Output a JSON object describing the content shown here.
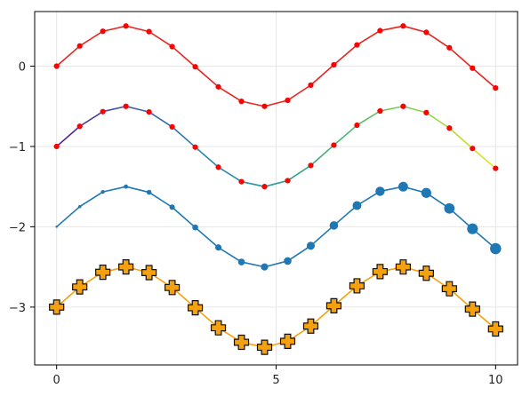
{
  "chart_data": {
    "type": "line",
    "x": [
      0,
      0.5263,
      1.0526,
      1.5789,
      2.1053,
      2.6316,
      3.1579,
      3.6842,
      4.2105,
      4.7368,
      5.2632,
      5.7895,
      6.3158,
      6.8421,
      7.3684,
      7.8947,
      8.4211,
      8.9474,
      9.4737,
      10.0
    ],
    "xlim": [
      -0.5,
      10.5
    ],
    "ylim": [
      -3.72,
      0.68
    ],
    "x_ticks": [
      0,
      5,
      10
    ],
    "x_tick_labels": [
      "0",
      "5",
      "10"
    ],
    "y_ticks": [
      0,
      -1,
      -2,
      -3
    ],
    "y_tick_labels": [
      "0",
      "−1",
      "−2",
      "−3"
    ],
    "grid": true,
    "legend": "none",
    "series": [
      {
        "offset": 0,
        "line_color": "#e8251f",
        "marker": "circle",
        "marker_color": "#ff0000",
        "marker_sizes": [
          5,
          5,
          5,
          5,
          5,
          5,
          5,
          5,
          5,
          5,
          5,
          5,
          5,
          5,
          5,
          5,
          5,
          5,
          5,
          5
        ],
        "values": [
          0,
          0.2511,
          0.4341,
          0.5,
          0.4298,
          0.2439,
          -0.0083,
          -0.2578,
          -0.438,
          -0.4999,
          -0.4256,
          -0.2364,
          0.0166,
          0.2644,
          0.4418,
          0.4997,
          0.4213,
          0.2289,
          -0.025,
          -0.272
        ]
      },
      {
        "offset": -1,
        "line_color": "gradient",
        "gradient_colors": [
          "#5a1b8c",
          "#3b58a8",
          "#2a82b5",
          "#2b9c9a",
          "#4ab86e",
          "#8ed24a",
          "#e6e51d"
        ],
        "marker": "circle",
        "marker_color": "#ff0000",
        "marker_sizes": [
          5,
          5,
          5,
          5,
          5,
          5,
          5,
          5,
          5,
          5,
          5,
          5,
          5,
          5,
          5,
          5,
          5,
          5,
          5,
          5
        ],
        "values": [
          -1.0,
          -0.7489,
          -0.5659,
          -0.5,
          -0.5702,
          -0.7561,
          -1.0083,
          -1.2578,
          -1.438,
          -1.4999,
          -1.4256,
          -1.2364,
          -0.9834,
          -0.7356,
          -0.5582,
          -0.5003,
          -0.5787,
          -0.7711,
          -1.025,
          -1.272
        ]
      },
      {
        "offset": -2,
        "line_color": "#1f77b4",
        "marker": "circle",
        "marker_color": "#1f77b4",
        "marker_sizes": [
          2,
          2.8,
          3.4,
          3.9,
          4.4,
          4.9,
          5.3,
          5.7,
          6.1,
          6.5,
          6.9,
          7.3,
          7.6,
          8.0,
          8.3,
          8.7,
          9.0,
          9.4,
          9.7,
          10.0
        ],
        "values": [
          -2.0,
          -1.7489,
          -1.5659,
          -1.5,
          -1.5702,
          -1.7561,
          -2.0083,
          -2.2578,
          -2.438,
          -2.4999,
          -2.4256,
          -2.2364,
          -1.9834,
          -1.7356,
          -1.5582,
          -1.5003,
          -1.5787,
          -1.7711,
          -2.025,
          -2.272
        ]
      },
      {
        "offset": -3,
        "line_color": "#f5a10d",
        "marker": "cross",
        "marker_color": "#f5a10d",
        "marker_stroke": "#111111",
        "marker_sizes": [
          8,
          8,
          8,
          8,
          8,
          8,
          8,
          8,
          8,
          8,
          8,
          8,
          8,
          8,
          8,
          8,
          8,
          8,
          8,
          8
        ],
        "values": [
          -3.0,
          -2.7489,
          -2.5659,
          -2.5,
          -2.5702,
          -2.7561,
          -3.0083,
          -3.2578,
          -3.438,
          -3.4999,
          -3.4256,
          -3.2364,
          -2.9834,
          -2.7356,
          -2.5582,
          -2.5003,
          -2.5787,
          -2.7711,
          -3.025,
          -3.272
        ]
      }
    ]
  }
}
